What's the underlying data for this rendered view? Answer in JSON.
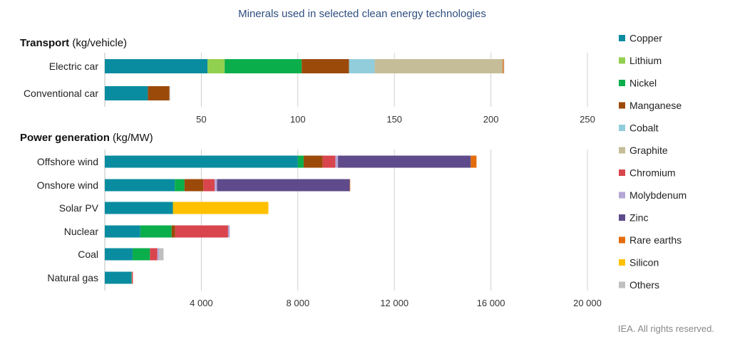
{
  "chart_data": {
    "type": "bar",
    "orientation": "horizontal",
    "stacked": true,
    "title": "Minerals used in selected clean energy technologies",
    "footer": "IEA. All rights reserved.",
    "grid": true,
    "legend_placement": "right",
    "legend": [
      {
        "name": "Copper",
        "color": "#0a8ca0"
      },
      {
        "name": "Lithium",
        "color": "#92d050"
      },
      {
        "name": "Nickel",
        "color": "#0aae4b"
      },
      {
        "name": "Manganese",
        "color": "#9c4a0a"
      },
      {
        "name": "Cobalt",
        "color": "#92cddc"
      },
      {
        "name": "Graphite",
        "color": "#c4bd97"
      },
      {
        "name": "Chromium",
        "color": "#d9454d"
      },
      {
        "name": "Molybdenum",
        "color": "#b4a7d6"
      },
      {
        "name": "Zinc",
        "color": "#5f4b8b"
      },
      {
        "name": "Rare earths",
        "color": "#e46c0a"
      },
      {
        "name": "Silicon",
        "color": "#ffc000"
      },
      {
        "name": "Others",
        "color": "#bfbfbf"
      }
    ],
    "panels": [
      {
        "title_bold": "Transport",
        "title_unit": " (kg/vehicle)",
        "xlim": [
          0,
          250
        ],
        "ticks": [
          50,
          100,
          150,
          200,
          250
        ],
        "tick_labels": [
          "50",
          "100",
          "150",
          "200",
          "250"
        ],
        "categories": [
          "Electric car",
          "Conventional car"
        ],
        "series": [
          {
            "mineral": "Copper",
            "values": [
              53.2,
              22.3
            ]
          },
          {
            "mineral": "Lithium",
            "values": [
              8.9,
              0
            ]
          },
          {
            "mineral": "Nickel",
            "values": [
              39.9,
              0
            ]
          },
          {
            "mineral": "Manganese",
            "values": [
              24.5,
              11.2
            ]
          },
          {
            "mineral": "Cobalt",
            "values": [
              13.3,
              0
            ]
          },
          {
            "mineral": "Graphite",
            "values": [
              66.3,
              0
            ]
          },
          {
            "mineral": "Chromium",
            "values": [
              0,
              0
            ]
          },
          {
            "mineral": "Molybdenum",
            "values": [
              0,
              0
            ]
          },
          {
            "mineral": "Zinc",
            "values": [
              0,
              0
            ]
          },
          {
            "mineral": "Rare earths",
            "values": [
              0.5,
              0
            ]
          },
          {
            "mineral": "Silicon",
            "values": [
              0,
              0
            ]
          },
          {
            "mineral": "Others",
            "values": [
              0.3,
              0.3
            ]
          }
        ]
      },
      {
        "title_bold": "Power generation",
        "title_unit": " (kg/MW)",
        "xlim": [
          0,
          20000
        ],
        "ticks": [
          4000,
          8000,
          12000,
          16000,
          20000
        ],
        "tick_labels": [
          "4 000",
          "8 000",
          "12 000",
          "16 000",
          "20 000"
        ],
        "categories": [
          "Offshore wind",
          "Onshore wind",
          "Solar PV",
          "Nuclear",
          "Coal",
          "Natural gas"
        ],
        "series": [
          {
            "mineral": "Copper",
            "values": [
              8000,
              2900,
              2822,
              1473,
              1150,
              1100
            ]
          },
          {
            "mineral": "Lithium",
            "values": [
              0,
              0,
              0,
              0,
              0,
              0
            ]
          },
          {
            "mineral": "Nickel",
            "values": [
              240,
              404,
              1.3,
              1297,
              721,
              16
            ]
          },
          {
            "mineral": "Manganese",
            "values": [
              790,
              780,
              0,
              148,
              0,
              0
            ]
          },
          {
            "mineral": "Cobalt",
            "values": [
              0,
              0,
              0,
              0,
              0,
              0
            ]
          },
          {
            "mineral": "Graphite",
            "values": [
              0,
              0,
              0,
              0,
              0,
              0
            ]
          },
          {
            "mineral": "Chromium",
            "values": [
              525,
              470,
              0,
              2190,
              308,
              48
            ]
          },
          {
            "mineral": "Molybdenum",
            "values": [
              109,
              99,
              0,
              70,
              66,
              0
            ]
          },
          {
            "mineral": "Zinc",
            "values": [
              5500,
              5500,
              0,
              0,
              0,
              0
            ]
          },
          {
            "mineral": "Rare earths",
            "values": [
              239,
              14,
              0,
              0,
              0,
              0
            ]
          },
          {
            "mineral": "Silicon",
            "values": [
              0,
              0,
              3955,
              0,
              0,
              0
            ]
          },
          {
            "mineral": "Others",
            "values": [
              0,
              0,
              0,
              0,
              190,
              0
            ]
          }
        ]
      }
    ]
  }
}
